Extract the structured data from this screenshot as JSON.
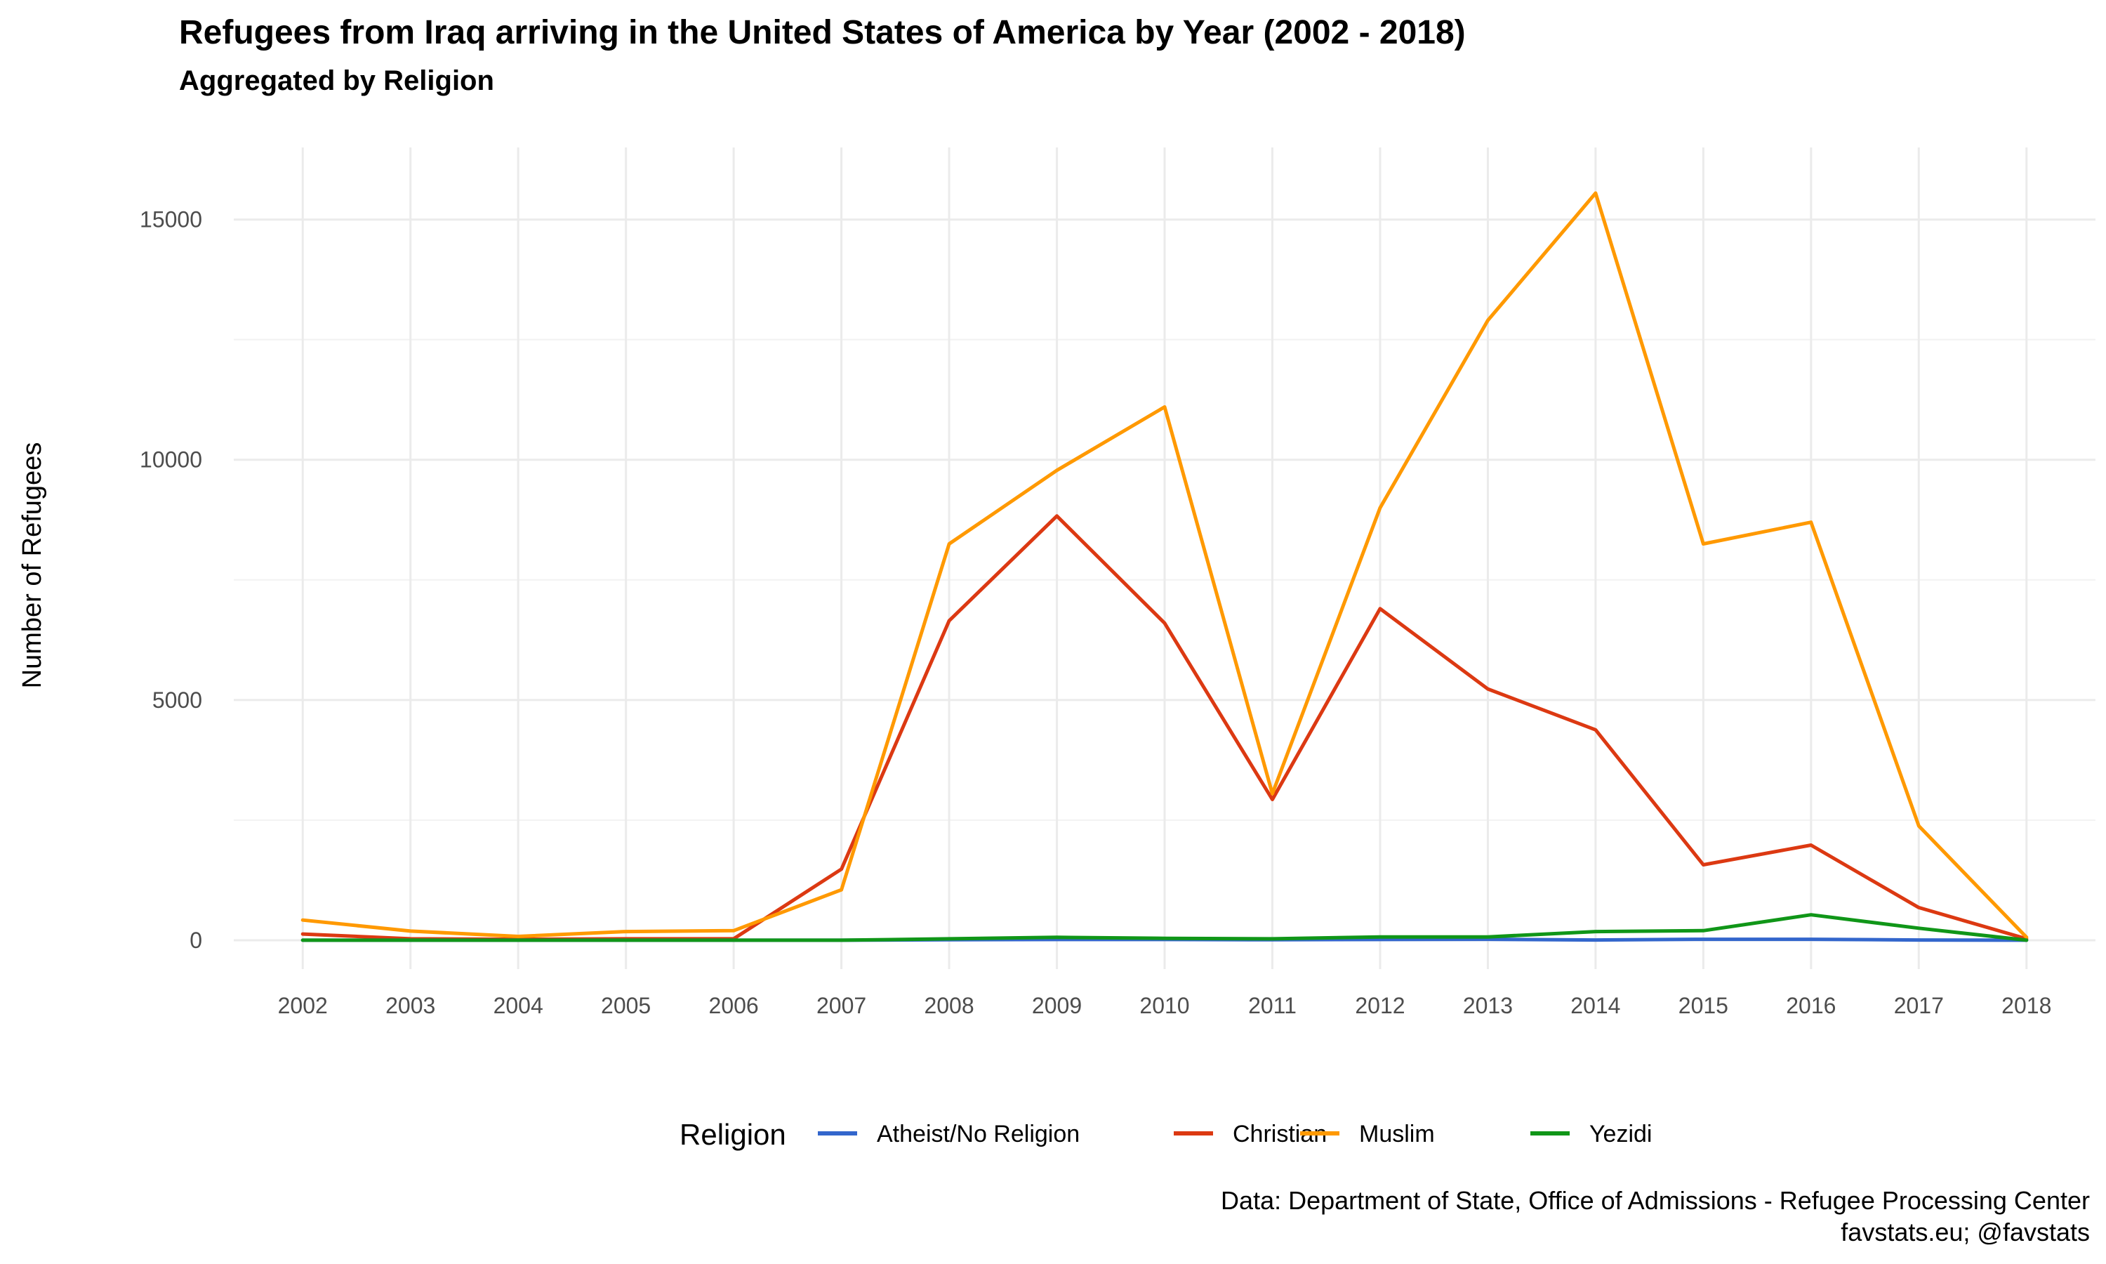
{
  "chart_data": {
    "type": "line",
    "title": "Refugees from Iraq arriving in the United States of America by Year (2002 - 2018)",
    "subtitle": "Aggregated by Religion",
    "xlabel": "",
    "ylabel": "Number of Refugees",
    "ylim": [
      -600,
      16500
    ],
    "y_ticks": [
      0,
      5000,
      10000,
      15000
    ],
    "x": [
      2002,
      2003,
      2004,
      2005,
      2006,
      2007,
      2008,
      2009,
      2010,
      2011,
      2012,
      2013,
      2014,
      2015,
      2016,
      2017,
      2018
    ],
    "x_tick_labels": [
      "2002",
      "2003",
      "2004",
      "2005",
      "2006",
      "2007",
      "2008",
      "2009",
      "2010",
      "2011",
      "2012",
      "2013",
      "2014",
      "2015",
      "2016",
      "2017",
      "2018"
    ],
    "y_tick_labels": [
      "0",
      "5000",
      "10000",
      "15000"
    ],
    "grid": true,
    "legend": {
      "title": "Religion",
      "position": "bottom"
    },
    "series": [
      {
        "name": "Atheist/No Religion",
        "color": "#3366cc",
        "values": [
          0,
          0,
          0,
          0,
          0,
          0,
          10,
          15,
          15,
          10,
          15,
          20,
          5,
          20,
          20,
          5,
          0
        ]
      },
      {
        "name": "Christian",
        "color": "#dc3912",
        "values": [
          130,
          30,
          20,
          30,
          30,
          1480,
          6650,
          8830,
          6600,
          2930,
          6900,
          5230,
          4380,
          1570,
          1980,
          680,
          30
        ]
      },
      {
        "name": "Muslim",
        "color": "#ff9900",
        "values": [
          420,
          190,
          80,
          180,
          200,
          1050,
          8250,
          9780,
          11100,
          3050,
          9000,
          12900,
          15550,
          8250,
          8700,
          2380,
          60
        ]
      },
      {
        "name": "Yezidi",
        "color": "#109618",
        "values": [
          0,
          0,
          0,
          0,
          0,
          0,
          30,
          60,
          40,
          30,
          70,
          70,
          180,
          200,
          530,
          250,
          0
        ]
      }
    ],
    "caption": [
      "Data: Department of State, Office of Admissions - Refugee Processing Center",
      "favstats.eu; @favstats"
    ]
  }
}
